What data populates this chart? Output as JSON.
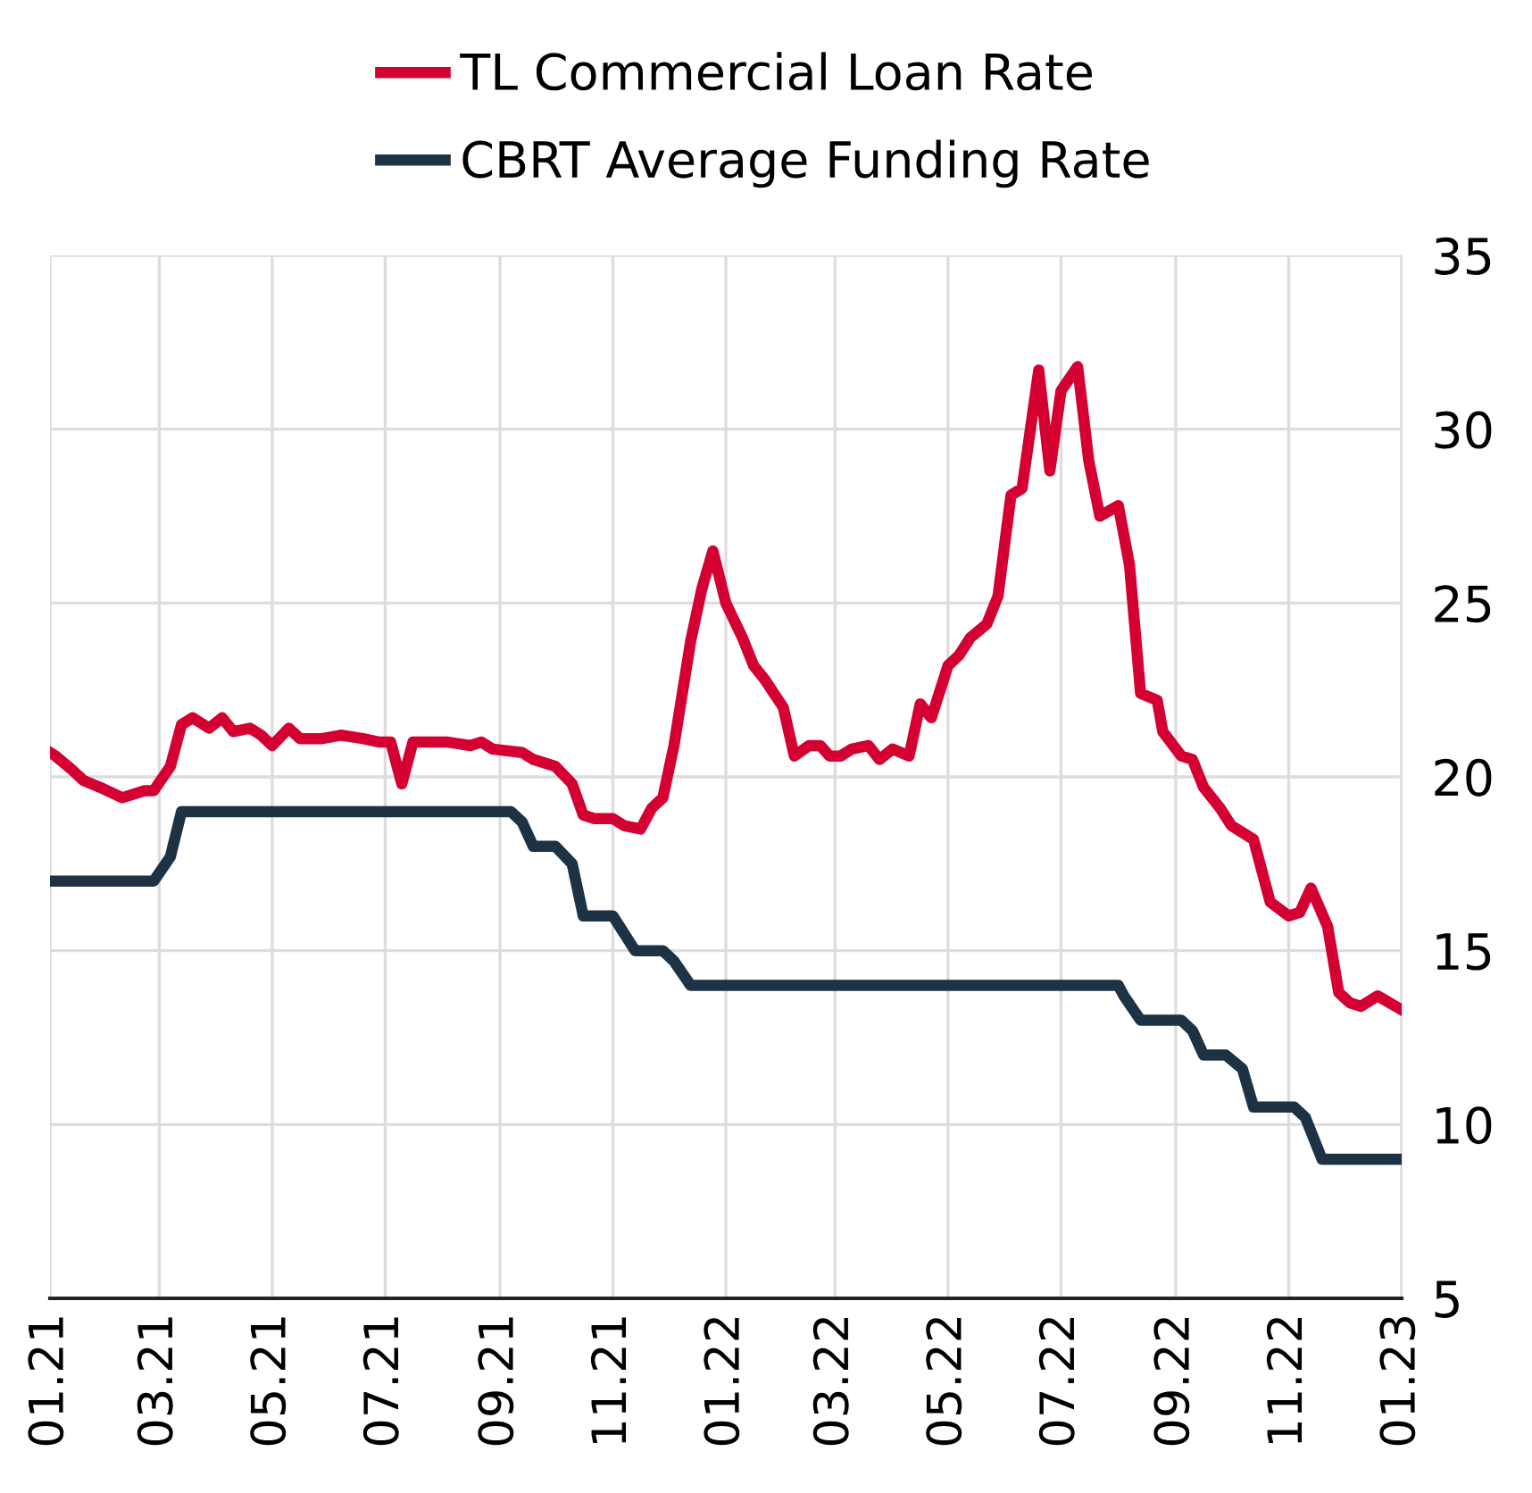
{
  "chart_data": {
    "type": "line",
    "series": [
      {
        "name": "TL Commercial Loan Rate",
        "color": "#d50032",
        "x": [
          "2021-01-01",
          "2021-01-04",
          "2021-01-13",
          "2021-01-19",
          "2021-01-28",
          "2021-02-09",
          "2021-02-21",
          "2021-02-26",
          "2021-03-07",
          "2021-03-13",
          "2021-03-19",
          "2021-03-28",
          "2021-04-04",
          "2021-04-10",
          "2021-04-19",
          "2021-04-25",
          "2021-05-01",
          "2021-05-10",
          "2021-05-16",
          "2021-05-28",
          "2021-06-07",
          "2021-06-19",
          "2021-06-28",
          "2021-07-04",
          "2021-07-10",
          "2021-07-16",
          "2021-08-04",
          "2021-08-16",
          "2021-08-22",
          "2021-08-28",
          "2021-09-13",
          "2021-09-19",
          "2021-10-01",
          "2021-10-10",
          "2021-10-16",
          "2021-10-22",
          "2021-11-01",
          "2021-11-07",
          "2021-11-16",
          "2021-11-22",
          "2021-11-28",
          "2021-12-04",
          "2021-12-13",
          "2021-12-19",
          "2021-12-25",
          "2022-01-01",
          "2022-01-10",
          "2022-01-16",
          "2022-01-22",
          "2022-02-01",
          "2022-02-07",
          "2022-02-15",
          "2022-02-21",
          "2022-02-26",
          "2022-03-04",
          "2022-03-10",
          "2022-03-19",
          "2022-03-25",
          "2022-04-01",
          "2022-04-10",
          "2022-04-16",
          "2022-04-22",
          "2022-05-01",
          "2022-05-07",
          "2022-05-13",
          "2022-05-22",
          "2022-05-28",
          "2022-06-04",
          "2022-06-10",
          "2022-06-19",
          "2022-06-25",
          "2022-07-01",
          "2022-07-10",
          "2022-07-16",
          "2022-07-22",
          "2022-08-01",
          "2022-08-07",
          "2022-08-13",
          "2022-08-22",
          "2022-08-25",
          "2022-09-04",
          "2022-09-10",
          "2022-09-16",
          "2022-09-25",
          "2022-10-01",
          "2022-10-13",
          "2022-10-22",
          "2022-11-01",
          "2022-11-07",
          "2022-11-13",
          "2022-11-22",
          "2022-11-28",
          "2022-12-04",
          "2022-12-10",
          "2022-12-19",
          "2023-01-01"
        ],
        "values": [
          20.7,
          20.6,
          20.2,
          19.9,
          19.7,
          19.4,
          19.6,
          19.6,
          20.3,
          21.5,
          21.7,
          21.4,
          21.7,
          21.3,
          21.4,
          21.2,
          20.9,
          21.4,
          21.1,
          21.1,
          21.2,
          21.1,
          21.0,
          21.0,
          19.8,
          21.0,
          21.0,
          20.9,
          21.0,
          20.8,
          20.7,
          20.5,
          20.3,
          19.8,
          18.9,
          18.8,
          18.8,
          18.6,
          18.5,
          19.1,
          19.4,
          20.9,
          23.9,
          25.4,
          26.5,
          25.0,
          24.0,
          23.2,
          22.8,
          22.0,
          20.6,
          20.9,
          20.9,
          20.6,
          20.6,
          20.8,
          20.9,
          20.5,
          20.8,
          20.6,
          22.1,
          21.7,
          23.2,
          23.5,
          24.0,
          24.4,
          25.2,
          28.1,
          28.3,
          31.7,
          28.8,
          31.1,
          31.8,
          29.1,
          27.5,
          27.8,
          26.1,
          22.4,
          22.2,
          21.3,
          20.6,
          20.5,
          19.7,
          19.1,
          18.6,
          18.2,
          16.4,
          16.0,
          16.1,
          16.8,
          15.7,
          13.8,
          13.5,
          13.4,
          13.7,
          13.3
        ]
      },
      {
        "name": "CBRT Average Funding Rate",
        "color": "#1e3246",
        "x": [
          "2021-01-01",
          "2021-02-26",
          "2021-03-07",
          "2021-03-13",
          "2021-09-07",
          "2021-09-13",
          "2021-09-19",
          "2021-10-01",
          "2021-10-10",
          "2021-10-16",
          "2021-11-01",
          "2021-11-07",
          "2021-11-13",
          "2021-11-28",
          "2021-12-04",
          "2021-12-13",
          "2022-08-01",
          "2022-08-04",
          "2022-08-13",
          "2022-09-04",
          "2022-09-10",
          "2022-09-16",
          "2022-09-28",
          "2022-10-07",
          "2022-10-13",
          "2022-11-04",
          "2022-11-10",
          "2022-11-19",
          "2022-12-16",
          "2023-01-01"
        ],
        "values": [
          17,
          17,
          17.7,
          19,
          19,
          18.7,
          18,
          18,
          17.5,
          16,
          16,
          15.5,
          15,
          15,
          14.7,
          14,
          14,
          13.7,
          13,
          13,
          12.7,
          12,
          12,
          11.6,
          10.5,
          10.5,
          10.2,
          9,
          9,
          9
        ]
      }
    ],
    "xlim": [
      "2021-01-01",
      "2023-01-01"
    ],
    "xticks": [
      {
        "value": "2021-01-01",
        "label": "01.21"
      },
      {
        "value": "2021-03-01",
        "label": "03.21"
      },
      {
        "value": "2021-05-01",
        "label": "05.21"
      },
      {
        "value": "2021-07-01",
        "label": "07.21"
      },
      {
        "value": "2021-09-01",
        "label": "09.21"
      },
      {
        "value": "2021-11-01",
        "label": "11.21"
      },
      {
        "value": "2022-01-01",
        "label": "01.22"
      },
      {
        "value": "2022-03-01",
        "label": "03.22"
      },
      {
        "value": "2022-05-01",
        "label": "05.22"
      },
      {
        "value": "2022-07-01",
        "label": "07.22"
      },
      {
        "value": "2022-09-01",
        "label": "09.22"
      },
      {
        "value": "2022-11-01",
        "label": "11.22"
      },
      {
        "value": "2023-01-01",
        "label": "01.23"
      }
    ],
    "ylim": [
      5,
      35
    ],
    "yticks": [
      5,
      10,
      15,
      20,
      25,
      30,
      35
    ],
    "grid": true,
    "legend": "top",
    "marker": "none",
    "line_style": "solid"
  }
}
